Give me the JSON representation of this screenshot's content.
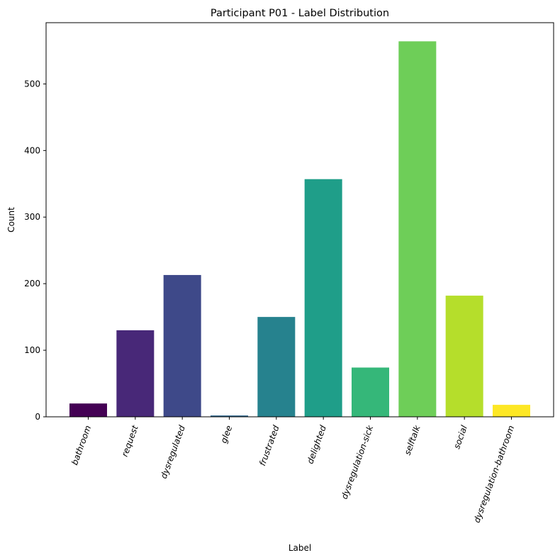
{
  "chart_data": {
    "type": "bar",
    "title": "Participant P01 - Label Distribution",
    "xlabel": "Label",
    "ylabel": "Count",
    "categories": [
      "bathroom",
      "request",
      "dysregulated",
      "glee",
      "frustrated",
      "delighted",
      "dysregulation-sick",
      "selftalk",
      "social",
      "dysregulation-bathroom"
    ],
    "values": [
      20,
      130,
      213,
      2,
      150,
      357,
      74,
      564,
      182,
      18
    ],
    "colors": [
      "#440154",
      "#482878",
      "#3e4989",
      "#31688e",
      "#26828e",
      "#1f9e89",
      "#35b779",
      "#6ece58",
      "#b5de2b",
      "#fde725"
    ],
    "yticks": [
      0,
      100,
      200,
      300,
      400,
      500
    ],
    "ylim": [
      0,
      592
    ],
    "grid": false,
    "legend": "none"
  }
}
